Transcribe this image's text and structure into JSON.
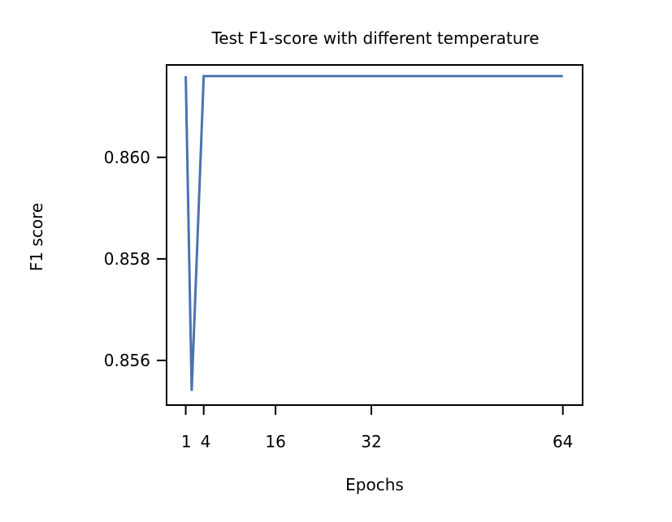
{
  "chart_data": {
    "type": "line",
    "title": "Test F1-score with different temperature",
    "xlabel": "Epochs",
    "ylabel": "F1 score",
    "x_tick_positions": [
      1,
      4,
      16,
      32,
      64
    ],
    "x_tick_labels": [
      "1",
      "4",
      "16",
      "32",
      "64"
    ],
    "y_ticks": [
      0.856,
      0.858,
      0.86
    ],
    "y_tick_labels": [
      "0.856",
      "0.858",
      "0.860"
    ],
    "xlim": [
      -2.2,
      67.3
    ],
    "ylim": [
      0.85512,
      0.86182
    ],
    "grid": false,
    "series": [
      {
        "color": "#4c72b0",
        "x": [
          1,
          2,
          4,
          8,
          16,
          32,
          64
        ],
        "y": [
          0.8616,
          0.8554,
          0.8616,
          0.8616,
          0.8616,
          0.8616,
          0.8616
        ]
      }
    ]
  }
}
